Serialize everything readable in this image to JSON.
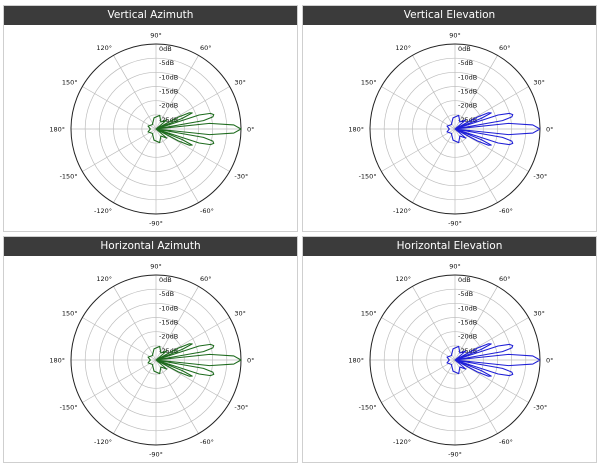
{
  "colors": {
    "header_bg": "#3b3b3b",
    "header_text": "#ffffff",
    "grid": "#bdbdbd",
    "outer_ring": "#222222"
  },
  "chart_data": [
    {
      "type": "polar",
      "title": "Vertical Azimuth",
      "color": "#1e6b1e",
      "radial_labels": [
        "0dB",
        "-5dB",
        "-10dB",
        "-15dB",
        "-20dB",
        "-25dB"
      ],
      "radial_values_db": [
        0,
        -5,
        -10,
        -15,
        -20,
        -25
      ],
      "r_range_db": [
        -30,
        0
      ],
      "angle_labels": [
        "0°",
        "30°",
        "60°",
        "90°",
        "120°",
        "150°",
        "180°",
        "-150°",
        "-120°",
        "-90°",
        "-60°",
        "-30°"
      ],
      "angles_deg": [
        0,
        30,
        60,
        90,
        120,
        150,
        180,
        -150,
        -120,
        -90,
        -60,
        -30
      ],
      "series": [
        {
          "theta_deg": [
            0,
            3,
            6,
            8,
            10,
            12,
            14,
            16,
            18,
            20,
            22,
            24,
            26,
            28,
            32,
            40,
            55,
            75,
            100,
            130,
            160,
            180,
            -160,
            -130,
            -100,
            -75,
            -55,
            -40,
            -32,
            -28,
            -26,
            -24,
            -22,
            -20,
            -18,
            -16,
            -14,
            -12,
            -10,
            -8,
            -6,
            -3,
            0
          ],
          "r_db": [
            0,
            -2.5,
            -11,
            -30,
            -13,
            -9.5,
            -9,
            -10,
            -14,
            -30,
            -20,
            -16,
            -17,
            -21,
            -30,
            -25,
            -27,
            -25,
            -26,
            -28,
            -27,
            -28,
            -27,
            -28,
            -26,
            -25,
            -27,
            -25,
            -30,
            -21,
            -17,
            -16,
            -20,
            -30,
            -14,
            -10,
            -9,
            -9.5,
            -13,
            -30,
            -11,
            -2.5,
            0
          ]
        }
      ]
    },
    {
      "type": "polar",
      "title": "Vertical Elevation",
      "color": "#1f1fd6",
      "radial_labels": [
        "0dB",
        "-5dB",
        "-10dB",
        "-15dB",
        "-20dB",
        "-25dB"
      ],
      "radial_values_db": [
        0,
        -5,
        -10,
        -15,
        -20,
        -25
      ],
      "r_range_db": [
        -30,
        0
      ],
      "angle_labels": [
        "0°",
        "30°",
        "60°",
        "90°",
        "120°",
        "150°",
        "180°",
        "-150°",
        "-120°",
        "-90°",
        "-60°",
        "-30°"
      ],
      "angles_deg": [
        0,
        30,
        60,
        90,
        120,
        150,
        180,
        -150,
        -120,
        -90,
        -60,
        -30
      ],
      "series": [
        {
          "theta_deg": [
            0,
            3,
            6,
            8,
            10,
            12,
            14,
            16,
            18,
            20,
            22,
            24,
            26,
            28,
            32,
            40,
            55,
            75,
            100,
            130,
            160,
            180,
            -160,
            -130,
            -100,
            -75,
            -55,
            -40,
            -32,
            -28,
            -26,
            -24,
            -22,
            -20,
            -18,
            -16,
            -14,
            -12,
            -10,
            -8,
            -6,
            -3,
            0
          ],
          "r_db": [
            0,
            -2.5,
            -11,
            -30,
            -13,
            -9.5,
            -9,
            -10,
            -14,
            -30,
            -20,
            -16,
            -17,
            -21,
            -30,
            -25,
            -27,
            -25,
            -26,
            -28,
            -27,
            -28,
            -27,
            -28,
            -26,
            -25,
            -27,
            -25,
            -30,
            -21,
            -17,
            -16,
            -20,
            -30,
            -14,
            -10,
            -9,
            -9.5,
            -13,
            -30,
            -11,
            -2.5,
            0
          ]
        }
      ]
    },
    {
      "type": "polar",
      "title": "Horizontal Azimuth",
      "color": "#1e6b1e",
      "radial_labels": [
        "0dB",
        "-5dB",
        "-10dB",
        "-15dB",
        "-20dB",
        "-25dB"
      ],
      "radial_values_db": [
        0,
        -5,
        -10,
        -15,
        -20,
        -25
      ],
      "r_range_db": [
        -30,
        0
      ],
      "angle_labels": [
        "0°",
        "30°",
        "60°",
        "90°",
        "120°",
        "150°",
        "180°",
        "-150°",
        "-120°",
        "-90°",
        "-60°",
        "-30°"
      ],
      "angles_deg": [
        0,
        30,
        60,
        90,
        120,
        150,
        180,
        -150,
        -120,
        -90,
        -60,
        -30
      ],
      "series": [
        {
          "theta_deg": [
            0,
            3,
            6,
            8,
            10,
            12,
            14,
            16,
            18,
            20,
            22,
            24,
            26,
            28,
            32,
            40,
            55,
            75,
            100,
            130,
            160,
            180,
            -160,
            -130,
            -100,
            -75,
            -55,
            -40,
            -32,
            -28,
            -26,
            -24,
            -22,
            -20,
            -18,
            -16,
            -14,
            -12,
            -10,
            -8,
            -6,
            -3,
            0
          ],
          "r_db": [
            0,
            -2.5,
            -11,
            -30,
            -13,
            -9.5,
            -9,
            -10,
            -14,
            -30,
            -20,
            -16,
            -17,
            -21,
            -30,
            -25,
            -27,
            -25,
            -26,
            -28,
            -27,
            -28,
            -27,
            -28,
            -26,
            -25,
            -27,
            -25,
            -30,
            -21,
            -17,
            -16,
            -20,
            -30,
            -14,
            -10,
            -9,
            -9.5,
            -13,
            -30,
            -11,
            -2.5,
            0
          ]
        }
      ]
    },
    {
      "type": "polar",
      "title": "Horizontal Elevation",
      "color": "#1f1fd6",
      "radial_labels": [
        "0dB",
        "-5dB",
        "-10dB",
        "-15dB",
        "-20dB",
        "-25dB"
      ],
      "radial_values_db": [
        0,
        -5,
        -10,
        -15,
        -20,
        -25
      ],
      "r_range_db": [
        -30,
        0
      ],
      "angle_labels": [
        "0°",
        "30°",
        "60°",
        "90°",
        "120°",
        "150°",
        "180°",
        "-150°",
        "-120°",
        "-90°",
        "-60°",
        "-30°"
      ],
      "angles_deg": [
        0,
        30,
        60,
        90,
        120,
        150,
        180,
        -150,
        -120,
        -90,
        -60,
        -30
      ],
      "series": [
        {
          "theta_deg": [
            0,
            3,
            6,
            8,
            10,
            12,
            14,
            16,
            18,
            20,
            22,
            24,
            26,
            28,
            32,
            40,
            55,
            75,
            100,
            130,
            160,
            180,
            -160,
            -130,
            -100,
            -75,
            -55,
            -40,
            -32,
            -28,
            -26,
            -24,
            -22,
            -20,
            -18,
            -16,
            -14,
            -12,
            -10,
            -8,
            -6,
            -3,
            0
          ],
          "r_db": [
            0,
            -2.5,
            -11,
            -30,
            -13,
            -9.5,
            -9,
            -10,
            -14,
            -30,
            -20,
            -16,
            -17,
            -21,
            -30,
            -25,
            -27,
            -25,
            -26,
            -28,
            -27,
            -28,
            -27,
            -28,
            -26,
            -25,
            -27,
            -25,
            -30,
            -21,
            -17,
            -16,
            -20,
            -30,
            -14,
            -10,
            -9,
            -9.5,
            -13,
            -30,
            -11,
            -2.5,
            0
          ]
        }
      ]
    }
  ]
}
